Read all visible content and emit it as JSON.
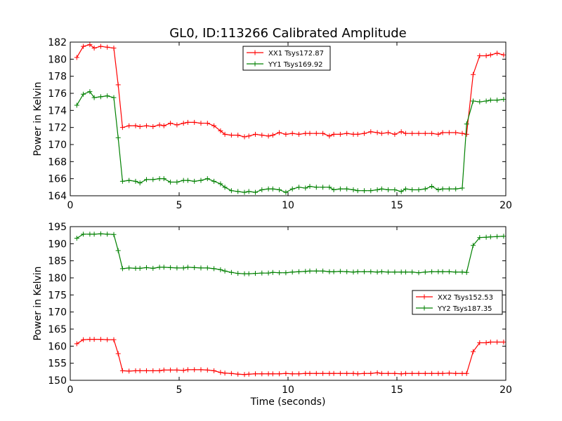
{
  "figure": {
    "title": "GL0, ID:113266 Calibrated Amplitude"
  },
  "chart_data": [
    {
      "type": "line",
      "xlabel": "",
      "ylabel": "Power in Kelvin",
      "xlim": [
        0,
        20
      ],
      "ylim": [
        164,
        182
      ],
      "xticks": [
        0,
        5,
        10,
        15,
        20
      ],
      "yticks": [
        164,
        166,
        168,
        170,
        172,
        174,
        176,
        178,
        180,
        182
      ],
      "legend_position": "top-center",
      "x": [
        0.3,
        0.6,
        0.9,
        1.1,
        1.4,
        1.7,
        2.0,
        2.2,
        2.4,
        2.7,
        3.0,
        3.2,
        3.5,
        3.8,
        4.1,
        4.3,
        4.6,
        4.9,
        5.2,
        5.4,
        5.7,
        6.0,
        6.3,
        6.6,
        6.9,
        7.1,
        7.4,
        7.7,
        8.0,
        8.2,
        8.5,
        8.8,
        9.1,
        9.3,
        9.6,
        9.9,
        10.2,
        10.5,
        10.8,
        11.0,
        11.3,
        11.6,
        11.9,
        12.1,
        12.4,
        12.7,
        13.0,
        13.2,
        13.5,
        13.8,
        14.1,
        14.3,
        14.6,
        14.9,
        15.2,
        15.4,
        15.7,
        16.0,
        16.3,
        16.6,
        16.9,
        17.1,
        17.4,
        17.7,
        18.0,
        18.2,
        18.5,
        18.8,
        19.1,
        19.3,
        19.6,
        19.9
      ],
      "series": [
        {
          "name": "XX1 Tsys172.87",
          "color": "#ff0000",
          "values": [
            180.2,
            181.5,
            181.7,
            181.3,
            181.5,
            181.4,
            181.3,
            177.0,
            172.0,
            172.2,
            172.2,
            172.1,
            172.2,
            172.1,
            172.3,
            172.2,
            172.5,
            172.3,
            172.5,
            172.6,
            172.6,
            172.5,
            172.5,
            172.2,
            171.6,
            171.2,
            171.1,
            171.1,
            170.9,
            171.0,
            171.2,
            171.1,
            171.0,
            171.1,
            171.4,
            171.2,
            171.3,
            171.2,
            171.3,
            171.3,
            171.3,
            171.3,
            171.0,
            171.2,
            171.2,
            171.3,
            171.2,
            171.2,
            171.3,
            171.5,
            171.4,
            171.3,
            171.4,
            171.2,
            171.5,
            171.3,
            171.3,
            171.3,
            171.3,
            171.3,
            171.2,
            171.4,
            171.4,
            171.4,
            171.3,
            171.2,
            178.2,
            180.4,
            180.4,
            180.5,
            180.7,
            180.5
          ]
        },
        {
          "name": "YY1 Tsys169.92",
          "color": "#008000",
          "values": [
            174.6,
            175.9,
            176.2,
            175.5,
            175.6,
            175.7,
            175.5,
            170.8,
            165.7,
            165.8,
            165.7,
            165.5,
            165.9,
            165.9,
            166.0,
            166.0,
            165.6,
            165.6,
            165.8,
            165.8,
            165.7,
            165.8,
            166.0,
            165.7,
            165.4,
            165.0,
            164.6,
            164.5,
            164.4,
            164.5,
            164.4,
            164.7,
            164.8,
            164.8,
            164.7,
            164.4,
            164.8,
            165.0,
            164.9,
            165.1,
            165.0,
            165.0,
            165.0,
            164.7,
            164.8,
            164.8,
            164.7,
            164.6,
            164.6,
            164.6,
            164.7,
            164.8,
            164.7,
            164.7,
            164.5,
            164.8,
            164.7,
            164.7,
            164.8,
            165.1,
            164.7,
            164.8,
            164.8,
            164.8,
            164.9,
            172.4,
            175.1,
            175.0,
            175.1,
            175.2,
            175.2,
            175.3
          ]
        }
      ]
    },
    {
      "type": "line",
      "xlabel": "Time (seconds)",
      "ylabel": "Power in Kelvin",
      "xlim": [
        0,
        20
      ],
      "ylim": [
        150,
        195
      ],
      "xticks": [
        0,
        5,
        10,
        15,
        20
      ],
      "yticks": [
        150,
        155,
        160,
        165,
        170,
        175,
        180,
        185,
        190,
        195
      ],
      "legend_position": "center-right",
      "x": [
        0.3,
        0.6,
        0.9,
        1.1,
        1.4,
        1.7,
        2.0,
        2.2,
        2.4,
        2.7,
        3.0,
        3.2,
        3.5,
        3.8,
        4.1,
        4.3,
        4.6,
        4.9,
        5.2,
        5.4,
        5.7,
        6.0,
        6.3,
        6.6,
        6.9,
        7.1,
        7.4,
        7.7,
        8.0,
        8.2,
        8.5,
        8.8,
        9.1,
        9.3,
        9.6,
        9.9,
        10.2,
        10.5,
        10.8,
        11.0,
        11.3,
        11.6,
        11.9,
        12.1,
        12.4,
        12.7,
        13.0,
        13.2,
        13.5,
        13.8,
        14.1,
        14.3,
        14.6,
        14.9,
        15.2,
        15.4,
        15.7,
        16.0,
        16.3,
        16.6,
        16.9,
        17.1,
        17.4,
        17.7,
        18.0,
        18.2,
        18.5,
        18.8,
        19.1,
        19.3,
        19.6,
        19.9
      ],
      "series": [
        {
          "name": "XX2 Tsys152.53",
          "color": "#ff0000",
          "values": [
            160.7,
            161.9,
            162.0,
            162.0,
            162.0,
            161.9,
            161.9,
            157.8,
            152.8,
            152.7,
            152.8,
            152.8,
            152.8,
            152.8,
            152.8,
            153.0,
            153.0,
            153.0,
            152.9,
            153.1,
            153.1,
            153.1,
            153.0,
            152.8,
            152.3,
            152.1,
            152.0,
            151.8,
            151.7,
            151.8,
            151.9,
            151.9,
            151.9,
            151.9,
            151.9,
            152.0,
            151.9,
            151.9,
            152.0,
            152.0,
            152.0,
            152.0,
            152.0,
            152.0,
            152.0,
            152.0,
            152.0,
            151.9,
            152.0,
            152.0,
            152.2,
            152.0,
            152.0,
            152.0,
            151.9,
            152.0,
            152.0,
            152.0,
            152.0,
            152.0,
            152.0,
            152.0,
            152.1,
            152.0,
            152.0,
            152.0,
            158.4,
            161.0,
            161.0,
            161.2,
            161.2,
            161.2
          ]
        },
        {
          "name": "YY2 Tsys187.35",
          "color": "#008000",
          "values": [
            191.6,
            192.8,
            192.8,
            192.8,
            192.9,
            192.8,
            192.7,
            188.0,
            182.7,
            182.9,
            182.8,
            182.8,
            183.0,
            182.8,
            183.1,
            183.1,
            183.0,
            182.9,
            182.9,
            183.1,
            183.0,
            182.9,
            182.9,
            182.7,
            182.4,
            182.0,
            181.6,
            181.3,
            181.2,
            181.2,
            181.3,
            181.4,
            181.4,
            181.6,
            181.5,
            181.5,
            181.7,
            181.8,
            181.9,
            182.0,
            182.0,
            182.0,
            181.8,
            181.8,
            181.9,
            181.8,
            181.7,
            181.8,
            181.8,
            181.8,
            181.7,
            181.8,
            181.7,
            181.7,
            181.7,
            181.7,
            181.7,
            181.5,
            181.7,
            181.8,
            181.8,
            181.8,
            181.8,
            181.7,
            181.7,
            181.6,
            189.5,
            191.8,
            191.9,
            192.0,
            192.1,
            192.2
          ]
        }
      ]
    }
  ]
}
